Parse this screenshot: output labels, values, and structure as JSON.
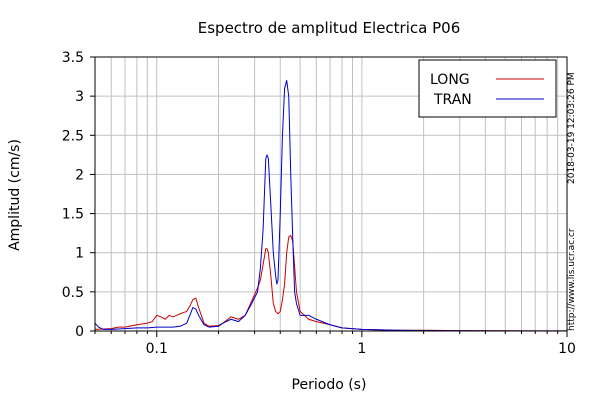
{
  "chart_data": {
    "type": "line",
    "title": "Espectro de amplitud Electrica P06",
    "xlabel": "Periodo (s)",
    "ylabel": "Amplitud (cm/s)",
    "xscale": "log",
    "xlim": [
      0.05,
      10
    ],
    "ylim": [
      0,
      3.5
    ],
    "grid": true,
    "legend_position": "top-right",
    "xticks": [
      {
        "value": 0.1,
        "label": "0.1"
      },
      {
        "value": 1,
        "label": "1"
      },
      {
        "value": 10,
        "label": "10"
      }
    ],
    "yticks": [
      {
        "value": 0,
        "label": "0"
      },
      {
        "value": 0.5,
        "label": "0.5"
      },
      {
        "value": 1,
        "label": "1"
      },
      {
        "value": 1.5,
        "label": "1.5"
      },
      {
        "value": 2,
        "label": "2"
      },
      {
        "value": 2.5,
        "label": "2.5"
      },
      {
        "value": 3,
        "label": "3"
      },
      {
        "value": 3.5,
        "label": "3.5"
      }
    ],
    "series": [
      {
        "name": "LONG",
        "color": "#cc0000",
        "x": [
          0.05,
          0.06,
          0.065,
          0.07,
          0.08,
          0.09,
          0.095,
          0.1,
          0.105,
          0.11,
          0.115,
          0.12,
          0.13,
          0.14,
          0.145,
          0.15,
          0.155,
          0.16,
          0.17,
          0.18,
          0.2,
          0.21,
          0.23,
          0.25,
          0.27,
          0.29,
          0.31,
          0.32,
          0.33,
          0.34,
          0.345,
          0.35,
          0.36,
          0.37,
          0.38,
          0.39,
          0.4,
          0.41,
          0.42,
          0.43,
          0.44,
          0.45,
          0.46,
          0.48,
          0.5,
          0.55,
          0.6,
          0.7,
          0.8,
          1.0,
          1.5,
          2.0,
          3.0,
          5.0,
          7.0,
          10.0
        ],
        "y": [
          0.02,
          0.03,
          0.05,
          0.05,
          0.08,
          0.1,
          0.12,
          0.2,
          0.18,
          0.15,
          0.2,
          0.18,
          0.22,
          0.25,
          0.32,
          0.4,
          0.42,
          0.3,
          0.1,
          0.06,
          0.07,
          0.1,
          0.18,
          0.15,
          0.2,
          0.38,
          0.55,
          0.65,
          0.85,
          1.05,
          1.05,
          1.0,
          0.7,
          0.35,
          0.25,
          0.22,
          0.25,
          0.4,
          0.6,
          1.0,
          1.2,
          1.22,
          1.15,
          0.5,
          0.25,
          0.15,
          0.12,
          0.08,
          0.04,
          0.02,
          0.01,
          0.01,
          0.005,
          0.003,
          0.002,
          0.002
        ]
      },
      {
        "name": "TRAN",
        "color": "#0000cc",
        "x": [
          0.05,
          0.052,
          0.055,
          0.06,
          0.07,
          0.08,
          0.09,
          0.1,
          0.12,
          0.13,
          0.14,
          0.145,
          0.15,
          0.155,
          0.16,
          0.17,
          0.18,
          0.2,
          0.21,
          0.23,
          0.25,
          0.27,
          0.29,
          0.31,
          0.32,
          0.33,
          0.34,
          0.345,
          0.35,
          0.36,
          0.37,
          0.38,
          0.385,
          0.39,
          0.4,
          0.41,
          0.42,
          0.43,
          0.44,
          0.45,
          0.46,
          0.47,
          0.48,
          0.5,
          0.55,
          0.6,
          0.7,
          0.8,
          1.0,
          1.5,
          2.0,
          3.0,
          5.0,
          7.0,
          10.0
        ],
        "y": [
          0.1,
          0.05,
          0.02,
          0.02,
          0.03,
          0.04,
          0.04,
          0.05,
          0.05,
          0.06,
          0.1,
          0.2,
          0.3,
          0.28,
          0.2,
          0.08,
          0.05,
          0.06,
          0.1,
          0.15,
          0.12,
          0.2,
          0.35,
          0.5,
          0.8,
          1.3,
          2.2,
          2.25,
          2.2,
          1.6,
          1.0,
          0.7,
          0.6,
          0.65,
          1.5,
          2.5,
          3.1,
          3.2,
          3.0,
          2.0,
          1.2,
          0.5,
          0.35,
          0.2,
          0.2,
          0.15,
          0.08,
          0.04,
          0.02,
          0.01,
          0.005,
          0.003,
          0.002,
          0.002,
          0.002
        ]
      }
    ]
  },
  "side_annotations": {
    "timestamp": "2018-03-19 12:03:26 PM",
    "url": "http://www.lis.ucr.ac.cr"
  }
}
